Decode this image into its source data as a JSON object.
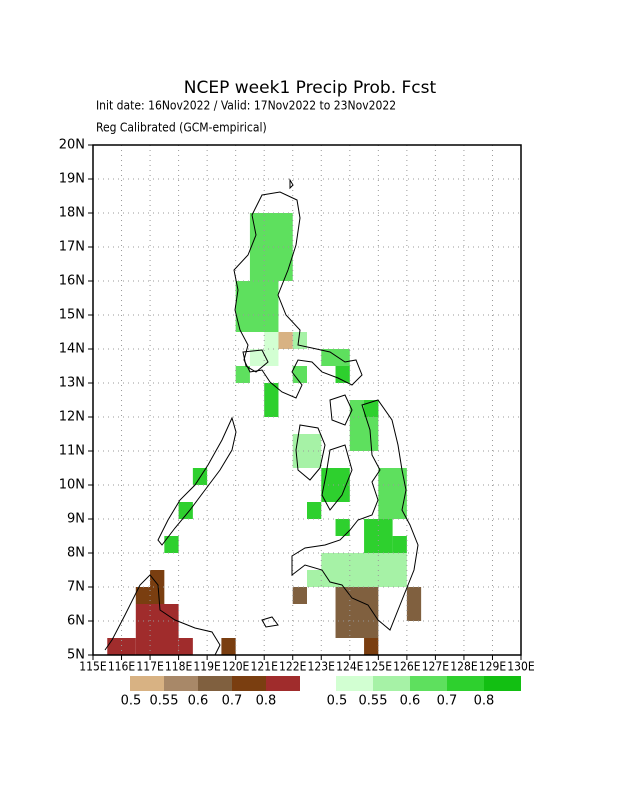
{
  "chart_data": {
    "type": "grid-map",
    "title": "NCEP week1 Precip Prob. Fcst",
    "subtitle": "Init date: 16Nov2022 / Valid: 17Nov2022 to 23Nov2022",
    "note": "Reg Calibrated (GCM-empirical)",
    "xlim": [
      115,
      130
    ],
    "ylim": [
      5,
      20
    ],
    "grid": true,
    "xticks": [
      {
        "value": 115,
        "label": "115E"
      },
      {
        "value": 116,
        "label": "116E"
      },
      {
        "value": 117,
        "label": "117E"
      },
      {
        "value": 118,
        "label": "118E"
      },
      {
        "value": 119,
        "label": "119E"
      },
      {
        "value": 120,
        "label": "120E"
      },
      {
        "value": 121,
        "label": "121E"
      },
      {
        "value": 122,
        "label": "122E"
      },
      {
        "value": 123,
        "label": "123E"
      },
      {
        "value": 124,
        "label": "124E"
      },
      {
        "value": 125,
        "label": "125E"
      },
      {
        "value": 126,
        "label": "126E"
      },
      {
        "value": 127,
        "label": "127E"
      },
      {
        "value": 128,
        "label": "128E"
      },
      {
        "value": 129,
        "label": "129E"
      },
      {
        "value": 130,
        "label": "130E"
      }
    ],
    "yticks": [
      {
        "value": 5,
        "label": "5N"
      },
      {
        "value": 6,
        "label": "6N"
      },
      {
        "value": 7,
        "label": "7N"
      },
      {
        "value": 8,
        "label": "8N"
      },
      {
        "value": 9,
        "label": "9N"
      },
      {
        "value": 10,
        "label": "10N"
      },
      {
        "value": 11,
        "label": "11N"
      },
      {
        "value": 12,
        "label": "12N"
      },
      {
        "value": 13,
        "label": "13N"
      },
      {
        "value": 14,
        "label": "14N"
      },
      {
        "value": 15,
        "label": "15N"
      },
      {
        "value": 16,
        "label": "16N"
      },
      {
        "value": 17,
        "label": "17N"
      },
      {
        "value": 18,
        "label": "18N"
      },
      {
        "value": 19,
        "label": "19N"
      },
      {
        "value": 20,
        "label": "20N"
      }
    ],
    "colorbars": [
      {
        "levels": [
          0.5,
          0.55,
          0.6,
          0.7,
          0.8
        ],
        "colors": [
          "#d8b283",
          "#a88868",
          "#80603f",
          "#7a3e10",
          "#a02c2c"
        ]
      },
      {
        "levels": [
          0.5,
          0.55,
          0.6,
          0.7,
          0.8
        ],
        "colors": [
          "#d2ffd2",
          "#a6f2a6",
          "#5ee05e",
          "#2ed02e",
          "#12bf12"
        ]
      }
    ],
    "cells": [
      {
        "bar": 1,
        "lon": [
          120.5,
          122.0
        ],
        "lat": [
          16.0,
          18.0
        ],
        "value": 0.6
      },
      {
        "bar": 1,
        "lon": [
          120.0,
          121.5
        ],
        "lat": [
          14.5,
          16.0
        ],
        "value": 0.6
      },
      {
        "bar": 1,
        "lon": [
          121.0,
          121.5
        ],
        "lat": [
          13.5,
          14.5
        ],
        "value": 0.5
      },
      {
        "bar": 1,
        "lon": [
          120.5,
          121.0
        ],
        "lat": [
          13.5,
          14.0
        ],
        "value": 0.5
      },
      {
        "bar": 1,
        "lon": [
          120.0,
          120.5
        ],
        "lat": [
          13.0,
          13.5
        ],
        "value": 0.6
      },
      {
        "bar": 1,
        "lon": [
          121.0,
          121.5
        ],
        "lat": [
          12.0,
          13.0
        ],
        "value": 0.7
      },
      {
        "bar": 1,
        "lon": [
          122.0,
          122.5
        ],
        "lat": [
          14.0,
          14.5
        ],
        "value": 0.55
      },
      {
        "bar": 1,
        "lon": [
          122.0,
          122.5
        ],
        "lat": [
          13.0,
          13.5
        ],
        "value": 0.6
      },
      {
        "bar": 1,
        "lon": [
          123.0,
          124.0
        ],
        "lat": [
          13.5,
          14.0
        ],
        "value": 0.6
      },
      {
        "bar": 1,
        "lon": [
          123.5,
          124.0
        ],
        "lat": [
          13.0,
          13.5
        ],
        "value": 0.7
      },
      {
        "bar": 1,
        "lon": [
          124.0,
          125.0
        ],
        "lat": [
          11.0,
          12.5
        ],
        "value": 0.6
      },
      {
        "bar": 1,
        "lon": [
          124.5,
          125.0
        ],
        "lat": [
          12.0,
          12.5
        ],
        "value": 0.7
      },
      {
        "bar": 1,
        "lon": [
          122.0,
          123.0
        ],
        "lat": [
          10.5,
          11.5
        ],
        "value": 0.55
      },
      {
        "bar": 1,
        "lon": [
          123.0,
          124.0
        ],
        "lat": [
          9.5,
          10.5
        ],
        "value": 0.7
      },
      {
        "bar": 1,
        "lon": [
          122.5,
          123.0
        ],
        "lat": [
          9.0,
          9.5
        ],
        "value": 0.7
      },
      {
        "bar": 1,
        "lon": [
          123.5,
          124.0
        ],
        "lat": [
          8.5,
          9.0
        ],
        "value": 0.7
      },
      {
        "bar": 1,
        "lon": [
          125.0,
          126.0
        ],
        "lat": [
          9.0,
          10.5
        ],
        "value": 0.6
      },
      {
        "bar": 1,
        "lon": [
          124.5,
          125.5
        ],
        "lat": [
          8.0,
          9.0
        ],
        "value": 0.7
      },
      {
        "bar": 1,
        "lon": [
          125.5,
          126.0
        ],
        "lat": [
          8.0,
          8.5
        ],
        "value": 0.7
      },
      {
        "bar": 1,
        "lon": [
          123.0,
          126.0
        ],
        "lat": [
          7.5,
          8.0
        ],
        "value": 0.55
      },
      {
        "bar": 1,
        "lon": [
          122.5,
          126.0
        ],
        "lat": [
          7.0,
          7.5
        ],
        "value": 0.55
      },
      {
        "bar": 1,
        "lon": [
          118.0,
          118.5
        ],
        "lat": [
          9.0,
          9.5
        ],
        "value": 0.7
      },
      {
        "bar": 1,
        "lon": [
          117.5,
          118.0
        ],
        "lat": [
          8.0,
          8.5
        ],
        "value": 0.7
      },
      {
        "bar": 1,
        "lon": [
          118.5,
          119.0
        ],
        "lat": [
          10.0,
          10.5
        ],
        "value": 0.7
      },
      {
        "bar": 0,
        "lon": [
          121.5,
          122.0
        ],
        "lat": [
          14.0,
          14.5
        ],
        "value": 0.5
      },
      {
        "bar": 0,
        "lon": [
          123.5,
          125.0
        ],
        "lat": [
          5.5,
          7.0
        ],
        "value": 0.6
      },
      {
        "bar": 0,
        "lon": [
          124.5,
          125.0
        ],
        "lat": [
          5.0,
          5.5
        ],
        "value": 0.7
      },
      {
        "bar": 0,
        "lon": [
          126.0,
          126.5
        ],
        "lat": [
          6.0,
          7.0
        ],
        "value": 0.6
      },
      {
        "bar": 0,
        "lon": [
          122.0,
          122.5
        ],
        "lat": [
          6.5,
          7.0
        ],
        "value": 0.6
      },
      {
        "bar": 0,
        "lon": [
          116.5,
          118.0
        ],
        "lat": [
          5.0,
          6.5
        ],
        "value": 0.8
      },
      {
        "bar": 0,
        "lon": [
          118.0,
          118.5
        ],
        "lat": [
          5.0,
          5.5
        ],
        "value": 0.8
      },
      {
        "bar": 0,
        "lon": [
          115.5,
          116.5
        ],
        "lat": [
          5.0,
          5.5
        ],
        "value": 0.8
      },
      {
        "bar": 0,
        "lon": [
          119.5,
          120.0
        ],
        "lat": [
          5.0,
          5.5
        ],
        "value": 0.7
      },
      {
        "bar": 0,
        "lon": [
          116.5,
          117.5
        ],
        "lat": [
          6.5,
          7.0
        ],
        "value": 0.7
      },
      {
        "bar": 0,
        "lon": [
          117.0,
          117.5
        ],
        "lat": [
          7.0,
          7.5
        ],
        "value": 0.7
      }
    ]
  }
}
